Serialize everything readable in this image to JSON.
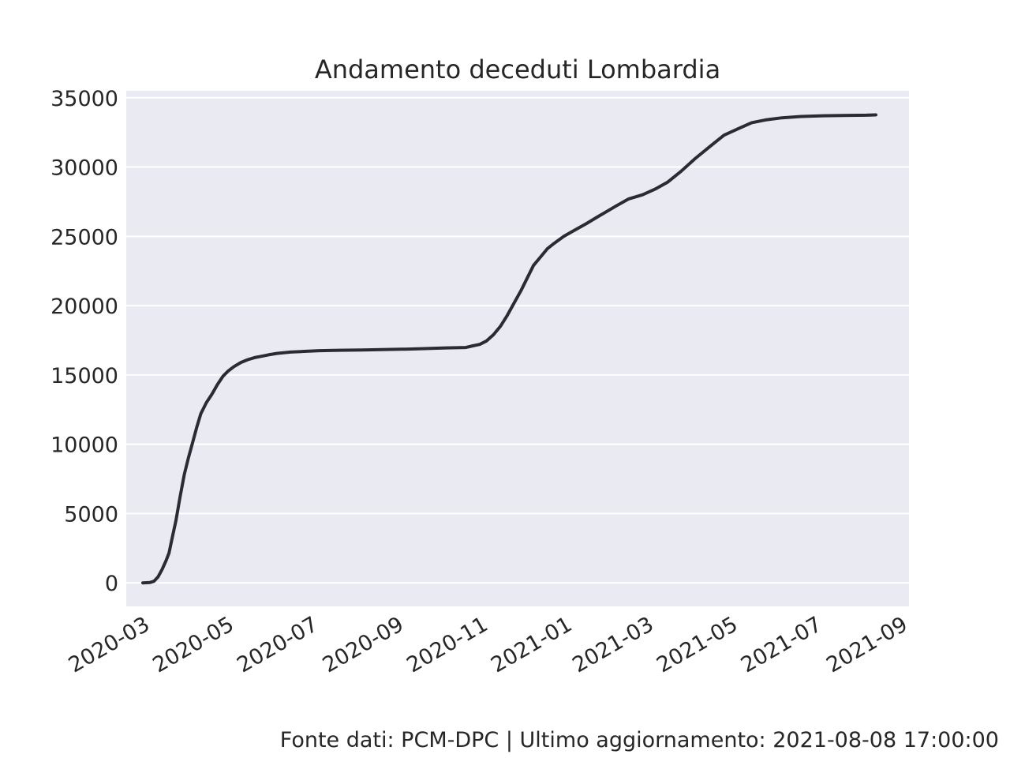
{
  "chart_data": {
    "type": "line",
    "title": "Andamento deceduti Lombardia",
    "xlabel": "",
    "ylabel": "",
    "x_ticks": [
      "2020-03",
      "2020-05",
      "2020-07",
      "2020-09",
      "2020-11",
      "2021-01",
      "2021-03",
      "2021-05",
      "2021-07",
      "2021-09"
    ],
    "y_ticks": [
      0,
      5000,
      10000,
      15000,
      20000,
      25000,
      30000,
      35000
    ],
    "xlim": [
      "2020-02-12",
      "2021-09-01"
    ],
    "ylim": [
      -1700,
      35500
    ],
    "grid": true,
    "background": "#eaeaf2",
    "gridline_color": "#ffffff",
    "line_color": "#2b2b33",
    "series": [
      {
        "x": [
          "2020-02-24",
          "2020-02-29",
          "2020-03-03",
          "2020-03-06",
          "2020-03-09",
          "2020-03-12",
          "2020-03-14",
          "2020-03-16",
          "2020-03-19",
          "2020-03-22",
          "2020-03-25",
          "2020-03-28",
          "2020-03-31",
          "2020-04-03",
          "2020-04-06",
          "2020-04-10",
          "2020-04-14",
          "2020-04-18",
          "2020-04-22",
          "2020-04-26",
          "2020-04-30",
          "2020-05-05",
          "2020-05-10",
          "2020-05-15",
          "2020-05-20",
          "2020-05-25",
          "2020-05-31",
          "2020-06-10",
          "2020-06-20",
          "2020-07-01",
          "2020-07-15",
          "2020-08-01",
          "2020-08-15",
          "2020-09-01",
          "2020-09-15",
          "2020-10-01",
          "2020-10-15",
          "2020-10-20",
          "2020-10-25",
          "2020-10-30",
          "2020-11-04",
          "2020-11-09",
          "2020-11-14",
          "2020-11-19",
          "2020-11-24",
          "2020-11-28",
          "2020-12-03",
          "2020-12-08",
          "2020-12-13",
          "2020-12-18",
          "2020-12-25",
          "2021-01-01",
          "2021-01-10",
          "2021-01-20",
          "2021-02-01",
          "2021-02-10",
          "2021-02-20",
          "2021-03-01",
          "2021-03-10",
          "2021-03-20",
          "2021-03-30",
          "2021-04-10",
          "2021-04-20",
          "2021-05-01",
          "2021-05-10",
          "2021-05-20",
          "2021-06-01",
          "2021-06-15",
          "2021-07-01",
          "2021-07-15",
          "2021-08-01",
          "2021-08-08"
        ],
        "values": [
          0,
          20,
          110,
          420,
          970,
          1640,
          2150,
          3100,
          4500,
          6200,
          7800,
          9000,
          10100,
          11200,
          12200,
          13000,
          13600,
          14300,
          14900,
          15300,
          15600,
          15900,
          16100,
          16250,
          16350,
          16450,
          16550,
          16650,
          16700,
          16750,
          16780,
          16800,
          16830,
          16860,
          16900,
          16950,
          16980,
          17100,
          17200,
          17450,
          17900,
          18500,
          19300,
          20200,
          21100,
          21900,
          22900,
          23500,
          24100,
          24500,
          25000,
          25400,
          25900,
          26500,
          27200,
          27700,
          28000,
          28400,
          28900,
          29700,
          30600,
          31500,
          32300,
          32800,
          33200,
          33400,
          33550,
          33650,
          33700,
          33720,
          33740,
          33760
        ]
      }
    ],
    "footer": "Fonte dati: PCM-DPC | Ultimo aggiornamento: 2021-08-08 17:00:00"
  }
}
